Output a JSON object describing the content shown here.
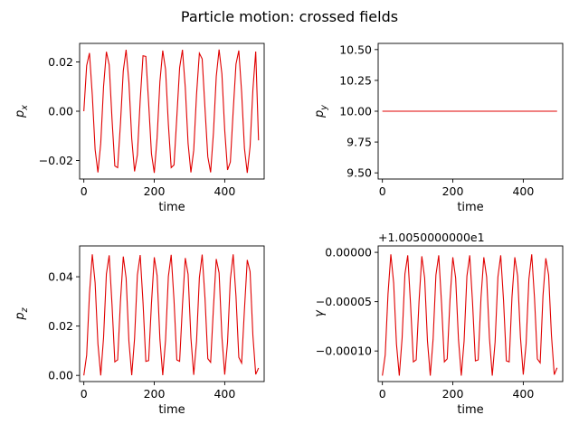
{
  "figure": {
    "title": "Particle motion: crossed fields",
    "line_color": "#e00000"
  },
  "chart_data": [
    {
      "type": "line",
      "xlabel": "time",
      "ylabel": "p_x",
      "ylabel_sub": "x",
      "xlim": [
        -12,
        512
      ],
      "ylim": [
        -0.0275,
        0.0275
      ],
      "xticks": [
        0,
        200,
        400
      ],
      "xtick_labels": [
        "0",
        "200",
        "400"
      ],
      "yticks": [
        -0.02,
        0.0,
        0.02
      ],
      "ytick_labels": [
        "−0.02",
        "0.00",
        "0.02"
      ],
      "offset_label": "",
      "series": [
        {
          "x": [
            0,
            8,
            16,
            24,
            32,
            40,
            48,
            56,
            64,
            72,
            80,
            88,
            96,
            104,
            112,
            120,
            128,
            136,
            144,
            152,
            160,
            168,
            176,
            184,
            192,
            200,
            208,
            216,
            224,
            232,
            240,
            248,
            256,
            264,
            272,
            280,
            288,
            296,
            304,
            312,
            320,
            328,
            336,
            344,
            352,
            360,
            368,
            376,
            384,
            392,
            400,
            408,
            416,
            424,
            432,
            440,
            448,
            456,
            464,
            472,
            480,
            488,
            496
          ],
          "y": [
            0.0,
            0.0185,
            0.0236,
            0.0066,
            -0.0155,
            -0.0248,
            -0.013,
            0.01,
            0.0241,
            0.0188,
            -0.0032,
            -0.0222,
            -0.0229,
            -0.005,
            0.0164,
            0.0249,
            0.0117,
            -0.0111,
            -0.0244,
            -0.0177,
            0.0044,
            0.0225,
            0.0222,
            0.0033,
            -0.0172,
            -0.025,
            -0.0108,
            0.012,
            0.0246,
            0.017,
            -0.0053,
            -0.0229,
            -0.0218,
            -0.0024,
            0.0177,
            0.0249,
            0.0097,
            -0.0131,
            -0.0248,
            -0.0158,
            0.0068,
            0.0235,
            0.0212,
            0.0011,
            -0.0185,
            -0.0248,
            -0.0087,
            0.0141,
            0.025,
            0.0151,
            -0.0077,
            -0.0238,
            -0.0206,
            0.0,
            0.0191,
            0.0246,
            0.0077,
            -0.015,
            -0.025,
            -0.0143,
            0.0087,
            0.0242,
            -0.0118
          ]
        }
      ]
    },
    {
      "type": "line",
      "xlabel": "time",
      "ylabel": "p_y",
      "ylabel_sub": "y",
      "xlim": [
        -12,
        512
      ],
      "ylim": [
        9.45,
        10.55
      ],
      "xticks": [
        0,
        200,
        400
      ],
      "xtick_labels": [
        "0",
        "200",
        "400"
      ],
      "yticks": [
        9.5,
        9.75,
        10.0,
        10.25,
        10.5
      ],
      "ytick_labels": [
        "9.50",
        "9.75",
        "10.00",
        "10.25",
        "10.50"
      ],
      "offset_label": "",
      "series": [
        {
          "x": [
            0,
            496
          ],
          "y": [
            10.0,
            10.0
          ]
        }
      ]
    },
    {
      "type": "line",
      "xlabel": "time",
      "ylabel": "p_z",
      "ylabel_sub": "z",
      "xlim": [
        -12,
        512
      ],
      "ylim": [
        -0.0025,
        0.0525
      ],
      "xticks": [
        0,
        200,
        400
      ],
      "xtick_labels": [
        "0",
        "200",
        "400"
      ],
      "yticks": [
        0.0,
        0.02,
        0.04
      ],
      "ytick_labels": [
        "0.00",
        "0.02",
        "0.04"
      ],
      "offset_label": "",
      "series": [
        {
          "x": [
            0,
            8,
            16,
            24,
            32,
            40,
            48,
            56,
            64,
            72,
            80,
            88,
            96,
            104,
            112,
            120,
            128,
            136,
            144,
            152,
            160,
            168,
            176,
            184,
            192,
            200,
            208,
            216,
            224,
            232,
            240,
            248,
            256,
            264,
            272,
            280,
            288,
            296,
            304,
            312,
            320,
            328,
            336,
            344,
            352,
            360,
            368,
            376,
            384,
            392,
            400,
            408,
            416,
            424,
            432,
            440,
            448,
            456,
            464,
            472,
            480,
            488,
            496
          ],
          "y": [
            0.0,
            0.0082,
            0.0331,
            0.0491,
            0.0376,
            0.0128,
            0.0,
            0.0153,
            0.0411,
            0.0487,
            0.0287,
            0.0055,
            0.0063,
            0.0301,
            0.0482,
            0.0395,
            0.0138,
            0.0001,
            0.0149,
            0.0407,
            0.0488,
            0.0296,
            0.0057,
            0.006,
            0.0292,
            0.0479,
            0.0405,
            0.0147,
            0.0001,
            0.0143,
            0.0401,
            0.0489,
            0.0305,
            0.0063,
            0.0057,
            0.0284,
            0.0476,
            0.041,
            0.0152,
            0.0002,
            0.0138,
            0.0396,
            0.049,
            0.0313,
            0.0068,
            0.0053,
            0.0275,
            0.0472,
            0.0416,
            0.0157,
            0.0003,
            0.0134,
            0.039,
            0.0491,
            0.0321,
            0.0073,
            0.005,
            0.0267,
            0.0468,
            0.0421,
            0.0162,
            0.0004,
            0.003
          ]
        }
      ]
    },
    {
      "type": "line",
      "xlabel": "time",
      "ylabel": "γ",
      "ylabel_sub": "",
      "xlim": [
        -12,
        512
      ],
      "ylim": [
        -0.000131,
        6.5e-06
      ],
      "xticks": [
        0,
        200,
        400
      ],
      "xtick_labels": [
        "0",
        "200",
        "400"
      ],
      "yticks": [
        -0.0001,
        -5e-05,
        0.0
      ],
      "ytick_labels": [
        "−0.00010",
        "−0.00005",
        "0.00000"
      ],
      "offset_label": "+1.0050000000e1",
      "series": [
        {
          "x": [
            0,
            8,
            16,
            24,
            32,
            40,
            48,
            56,
            64,
            72,
            80,
            88,
            96,
            104,
            112,
            120,
            128,
            136,
            144,
            152,
            160,
            168,
            176,
            184,
            192,
            200,
            208,
            216,
            224,
            232,
            240,
            248,
            256,
            264,
            272,
            280,
            288,
            296,
            304,
            312,
            320,
            328,
            336,
            344,
            352,
            360,
            368,
            376,
            384,
            392,
            400,
            408,
            416,
            424,
            432,
            440,
            448,
            456,
            464,
            472,
            480,
            488,
            496
          ],
          "y": [
            -0.000125,
            -0.000104,
            -4.2e-05,
            -2e-06,
            -3.1e-05,
            -9.3e-05,
            -0.000125,
            -8.7e-05,
            -2.2e-05,
            -3e-06,
            -5.3e-05,
            -0.000111,
            -0.000109,
            -5e-05,
            -4e-06,
            -2.6e-05,
            -9e-05,
            -0.000125,
            -8.8e-05,
            -2.3e-05,
            -3e-06,
            -5.2e-05,
            -0.000111,
            -0.000108,
            -4.8e-05,
            -5e-06,
            -2.6e-05,
            -8.8e-05,
            -0.000125,
            -9e-05,
            -2.4e-05,
            -3e-06,
            -5.1e-05,
            -0.00011,
            -0.000109,
            -4.6e-05,
            -5e-06,
            -2.5e-05,
            -8.7e-05,
            -0.000125,
            -9.1e-05,
            -2.5e-05,
            -3e-06,
            -4.9e-05,
            -0.00011,
            -0.000111,
            -4.5e-05,
            -5e-06,
            -2.4e-05,
            -8.6e-05,
            -0.000124,
            -9.3e-05,
            -2.7e-05,
            -2e-06,
            -4.7e-05,
            -0.000108,
            -0.000112,
            -4.4e-05,
            -6e-06,
            -2.3e-05,
            -8.4e-05,
            -0.000124,
            -0.000117
          ]
        }
      ]
    }
  ]
}
